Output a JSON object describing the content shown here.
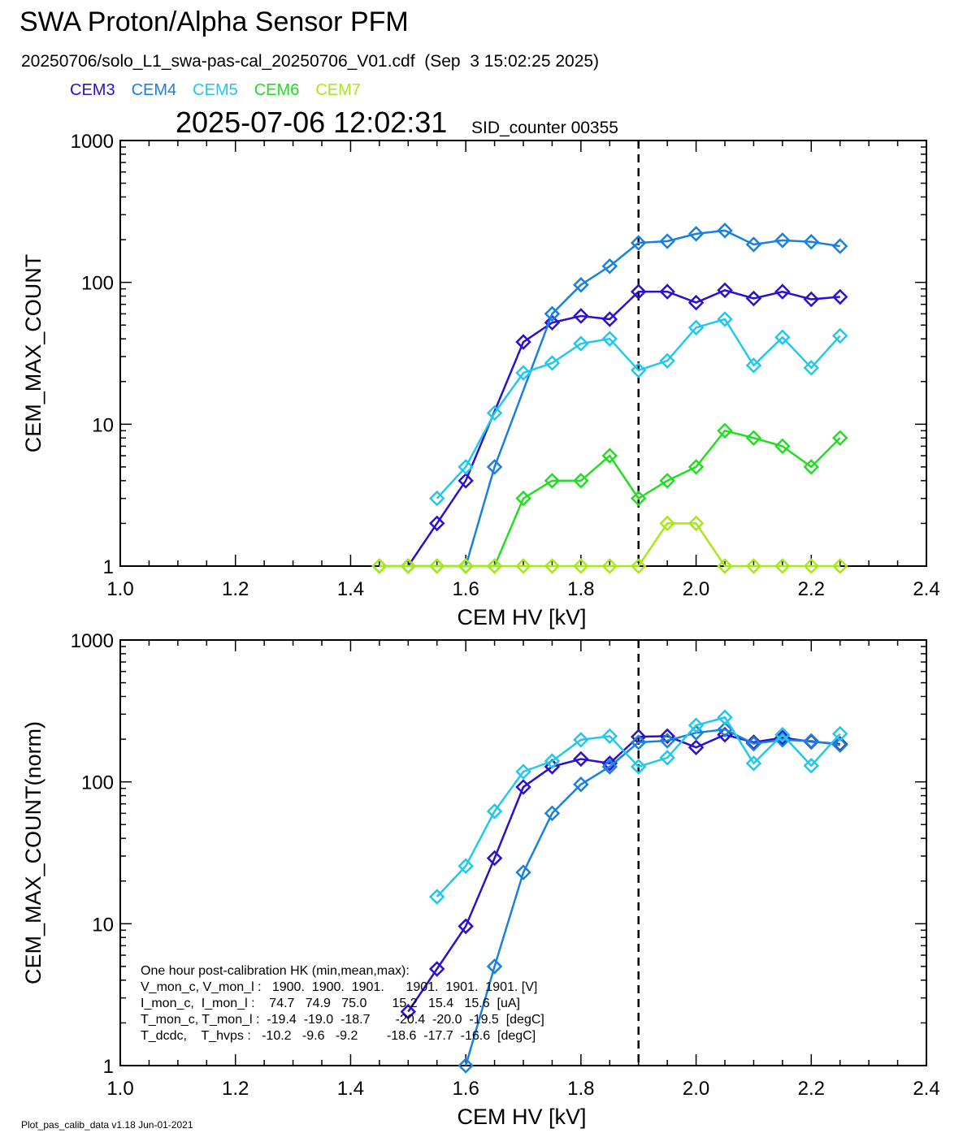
{
  "header": {
    "title": "SWA Proton/Alpha Sensor PFM",
    "subtitle": "20250706/solo_L1_swa-pas-cal_20250706_V01.cdf  (Sep  3 15:02:25 2025)",
    "timestamp": "2025-07-06 12:02:31",
    "sid_counter": "SID_counter 00355"
  },
  "legend": [
    {
      "name": "CEM3",
      "color": "#2a10d0"
    },
    {
      "name": "CEM4",
      "color": "#1a80e0"
    },
    {
      "name": "CEM5",
      "color": "#22c8ec"
    },
    {
      "name": "CEM6",
      "color": "#22dd22"
    },
    {
      "name": "CEM7",
      "color": "#a8e818"
    }
  ],
  "hk": {
    "lines": [
      "One hour post-calibration HK (min,mean,max):",
      "V_mon_c, V_mon_l :   1900.  1900.  1901.      1901.  1901.  1901. [V]",
      "I_mon_c,  I_mon_l :    74.7   74.9   75.0       15.2   15.4   15.6  [uA]",
      "T_mon_c, T_mon_l :  -19.4  -19.0  -18.7       -20.4  -20.0  -19.5  [degC]",
      "T_dcdc,    T_hvps :   -10.2   -9.6   -9.2        -18.6  -17.7  -16.6  [degC]"
    ]
  },
  "footer": "Plot_pas_calib_data v1.18 Jun-01-2021",
  "chart_data": [
    {
      "type": "line",
      "xlabel": "CEM HV [kV]",
      "ylabel": "CEM_MAX_COUNT",
      "xlim": [
        1.0,
        2.4
      ],
      "ylim": [
        1,
        1000
      ],
      "yscale": "log",
      "xticks": [
        "1.0",
        "1.2",
        "1.4",
        "1.6",
        "1.8",
        "2.0",
        "2.2",
        "2.4"
      ],
      "yticks": [
        "1",
        "10",
        "100",
        "1000"
      ],
      "vline": 1.9,
      "series": [
        {
          "name": "CEM3",
          "color": "#2a10d0",
          "x": [
            1.5,
            1.55,
            1.6,
            1.7,
            1.75,
            1.8,
            1.85,
            1.9,
            1.95,
            2.0,
            2.05,
            2.1,
            2.15,
            2.2,
            2.25
          ],
          "y": [
            1,
            2,
            4,
            38,
            52,
            58,
            55,
            86,
            86,
            72,
            88,
            77,
            86,
            76,
            79
          ]
        },
        {
          "name": "CEM4",
          "color": "#1a80e0",
          "x": [
            1.6,
            1.65,
            1.75,
            1.8,
            1.85,
            1.9,
            1.95,
            2.0,
            2.05,
            2.1,
            2.15,
            2.2,
            2.25
          ],
          "y": [
            1,
            5,
            60,
            96,
            130,
            190,
            195,
            220,
            232,
            185,
            198,
            193,
            180
          ]
        },
        {
          "name": "CEM5",
          "color": "#22c8ec",
          "x": [
            1.55,
            1.6,
            1.65,
            1.7,
            1.75,
            1.8,
            1.85,
            1.9,
            1.95,
            2.0,
            2.05,
            2.1,
            2.15,
            2.2,
            2.25
          ],
          "y": [
            3,
            5,
            12,
            23,
            27,
            37,
            40,
            24,
            28,
            48,
            55,
            26,
            41,
            25,
            42
          ]
        },
        {
          "name": "CEM6",
          "color": "#22dd22",
          "x": [
            1.45,
            1.5,
            1.55,
            1.6,
            1.65,
            1.7,
            1.75,
            1.8,
            1.85,
            1.9,
            1.95,
            2.0,
            2.05,
            2.1,
            2.15,
            2.2,
            2.25
          ],
          "y": [
            1,
            1,
            1,
            1,
            1,
            3,
            4,
            4,
            6,
            3,
            4,
            5,
            9,
            8,
            7,
            5,
            8
          ]
        },
        {
          "name": "CEM7",
          "color": "#a8e818",
          "x": [
            1.45,
            1.5,
            1.55,
            1.6,
            1.65,
            1.7,
            1.75,
            1.8,
            1.85,
            1.9,
            1.95,
            2.0,
            2.05,
            2.1,
            2.15,
            2.2,
            2.25
          ],
          "y": [
            1,
            1,
            1,
            1,
            1,
            1,
            1,
            1,
            1,
            1,
            2,
            2,
            1,
            1,
            1,
            1,
            1
          ]
        }
      ]
    },
    {
      "type": "line",
      "xlabel": "CEM HV [kV]",
      "ylabel": "CEM_MAX_COUNT(norm)",
      "xlim": [
        1.0,
        2.4
      ],
      "ylim": [
        1,
        1000
      ],
      "yscale": "log",
      "xticks": [
        "1.0",
        "1.2",
        "1.4",
        "1.6",
        "1.8",
        "2.0",
        "2.2",
        "2.4"
      ],
      "yticks": [
        "1",
        "10",
        "100",
        "1000"
      ],
      "vline": 1.9,
      "series": [
        {
          "name": "CEM3",
          "color": "#2a10d0",
          "x": [
            1.5,
            1.55,
            1.6,
            1.65,
            1.7,
            1.75,
            1.8,
            1.85,
            1.9,
            1.95,
            2.0,
            2.05,
            2.1,
            2.15,
            2.2,
            2.25
          ],
          "y": [
            2.4,
            4.8,
            9.6,
            29,
            92,
            128,
            145,
            135,
            208,
            210,
            175,
            215,
            190,
            205,
            192,
            185
          ]
        },
        {
          "name": "CEM4",
          "color": "#1a80e0",
          "x": [
            1.6,
            1.65,
            1.7,
            1.75,
            1.8,
            1.85,
            1.9,
            1.95,
            2.0,
            2.05,
            2.1,
            2.15,
            2.2,
            2.25
          ],
          "y": [
            1,
            5,
            23,
            60,
            96,
            128,
            190,
            195,
            222,
            234,
            186,
            198,
            194,
            182
          ]
        },
        {
          "name": "CEM5",
          "color": "#22c8ec",
          "x": [
            1.55,
            1.6,
            1.65,
            1.7,
            1.75,
            1.8,
            1.85,
            1.9,
            1.95,
            2.0,
            2.05,
            2.1,
            2.15,
            2.2,
            2.25
          ],
          "y": [
            15.5,
            25.5,
            62,
            118,
            140,
            198,
            210,
            128,
            148,
            250,
            285,
            135,
            215,
            130,
            218
          ]
        }
      ]
    }
  ]
}
